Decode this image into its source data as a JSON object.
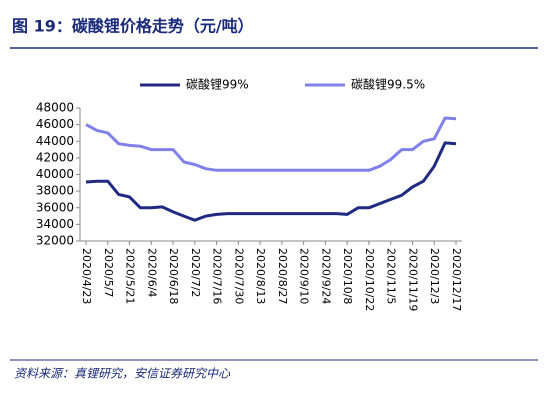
{
  "chart_data": {
    "type": "line",
    "title": "图 19：碳酸锂价格走势（元/吨）",
    "source": "资料来源：真锂研究，安信证券研究中心",
    "categories": [
      "2020/4/23",
      null,
      "2020/5/7",
      null,
      "2020/5/21",
      null,
      "2020/6/4",
      null,
      "2020/6/18",
      null,
      "2020/7/2",
      null,
      "2020/7/16",
      null,
      "2020/7/30",
      null,
      "2020/8/13",
      null,
      "2020/8/27",
      null,
      "2020/9/10",
      null,
      "2020/9/24",
      null,
      "2020/10/8",
      null,
      "2020/10/22",
      null,
      "2020/11/5",
      null,
      "2020/11/19",
      null,
      "2020/12/3",
      null,
      "2020/12/17"
    ],
    "series": [
      {
        "name": "碳酸锂99%",
        "color": "#1f2a80",
        "values": [
          39100,
          39200,
          39200,
          37600,
          37300,
          36000,
          36000,
          36100,
          35500,
          35000,
          34500,
          35000,
          35200,
          35300,
          35300,
          35300,
          35300,
          35300,
          35300,
          35300,
          35300,
          35300,
          35300,
          35300,
          35200,
          36000,
          36000,
          36500,
          37000,
          37500,
          38500,
          39200,
          41000,
          43800,
          43700
        ]
      },
      {
        "name": "碳酸锂99.5%",
        "color": "#8080ea",
        "values": [
          46000,
          45300,
          45000,
          43700,
          43500,
          43400,
          43000,
          43000,
          43000,
          41500,
          41200,
          40700,
          40500,
          40500,
          40500,
          40500,
          40500,
          40500,
          40500,
          40500,
          40500,
          40500,
          40500,
          40500,
          40500,
          40500,
          40500,
          41000,
          41800,
          43000,
          43000,
          44000,
          44300,
          46800,
          46700
        ]
      }
    ],
    "ylim": [
      32000,
      48000
    ],
    "yticks": [
      32000,
      34000,
      36000,
      38000,
      40000,
      42000,
      44000,
      46000,
      48000
    ],
    "grid": false,
    "legend": "top"
  }
}
